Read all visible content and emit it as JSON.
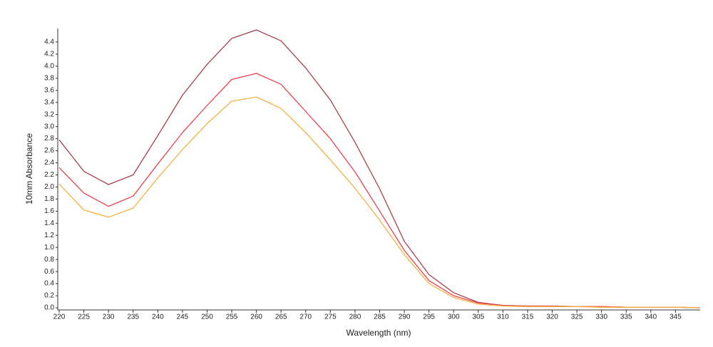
{
  "chart_data": {
    "type": "line",
    "xlabel": "Wavelength (nm)",
    "ylabel": "10mm Absorbance",
    "x": [
      220,
      225,
      230,
      235,
      240,
      245,
      250,
      255,
      260,
      265,
      270,
      275,
      280,
      285,
      290,
      295,
      300,
      305,
      310,
      315,
      320,
      325,
      330,
      335,
      340,
      345,
      350
    ],
    "series": [
      {
        "color": "#a8404e",
        "values": [
          2.78,
          2.26,
          2.04,
          2.2,
          2.85,
          3.52,
          4.03,
          4.46,
          4.6,
          4.42,
          3.97,
          3.44,
          2.74,
          1.97,
          1.1,
          0.55,
          0.25,
          0.09,
          0.04,
          0.03,
          0.03,
          0.02,
          0.02,
          0.01,
          0.01,
          0.01,
          0
        ]
      },
      {
        "color": "#e8424c",
        "values": [
          2.32,
          1.9,
          1.68,
          1.85,
          2.38,
          2.9,
          3.35,
          3.78,
          3.88,
          3.7,
          3.25,
          2.8,
          2.25,
          1.6,
          0.95,
          0.45,
          0.2,
          0.08,
          0.04,
          0.03,
          0.03,
          0.02,
          0.02,
          0.01,
          0.01,
          0.01,
          0
        ]
      },
      {
        "color": "#f5b041",
        "values": [
          2.05,
          1.62,
          1.5,
          1.65,
          2.15,
          2.62,
          3.05,
          3.42,
          3.49,
          3.3,
          2.9,
          2.45,
          1.98,
          1.45,
          0.88,
          0.4,
          0.17,
          0.06,
          0.03,
          0.02,
          0.02,
          0.02,
          0.01,
          0.01,
          0.01,
          0.01,
          0
        ]
      }
    ],
    "xlim": [
      220,
      350
    ],
    "ylim": [
      0,
      4.6
    ],
    "xticks": [
      220,
      225,
      230,
      235,
      240,
      245,
      250,
      255,
      260,
      265,
      270,
      275,
      280,
      285,
      290,
      295,
      300,
      305,
      310,
      315,
      320,
      325,
      330,
      335,
      340,
      345
    ],
    "yticks": [
      {
        "value": 0,
        "label": "0.0"
      },
      0.2,
      0.4,
      0.6,
      0.8,
      {
        "value": 1,
        "label": "1.0"
      },
      1.2,
      1.4,
      1.6,
      1.8,
      {
        "value": 2,
        "label": "2.0"
      },
      2.2,
      2.4,
      2.6,
      2.8,
      {
        "value": 3,
        "label": "3.0"
      },
      3.2,
      3.4,
      3.6,
      3.8,
      {
        "value": 4,
        "label": "4.0"
      },
      4.2,
      4.4
    ],
    "grid": false
  }
}
